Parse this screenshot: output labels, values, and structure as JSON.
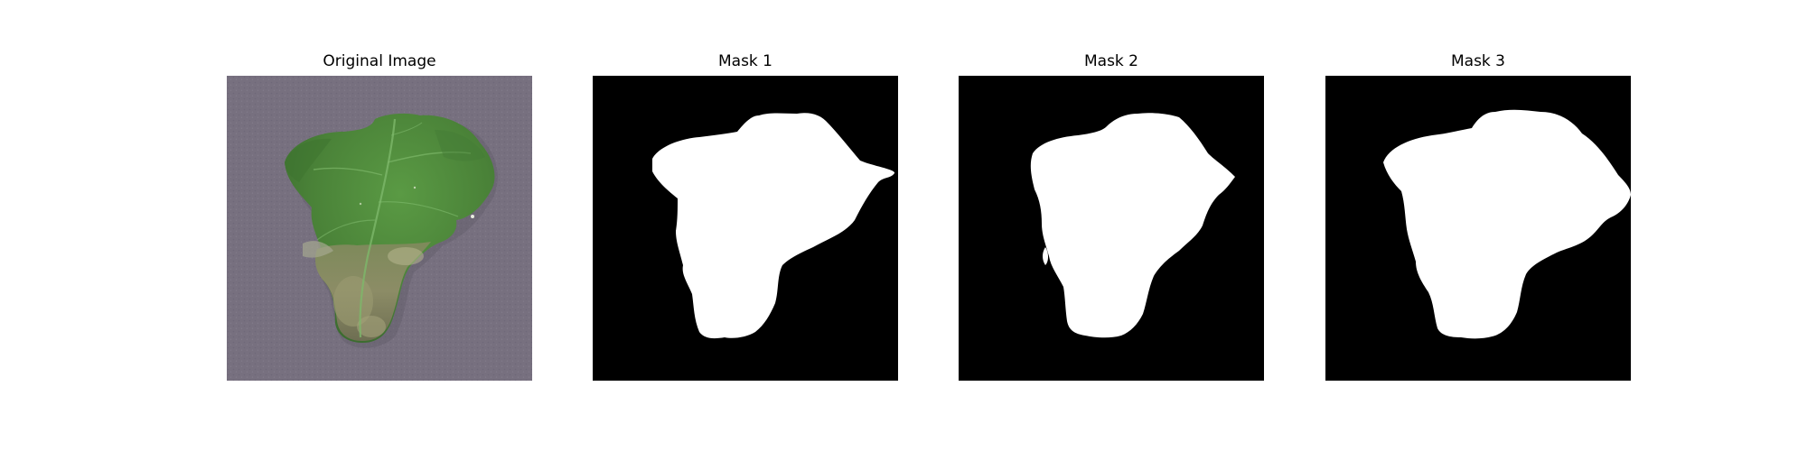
{
  "figure": {
    "panels": [
      {
        "title": "Original Image",
        "kind": "photo",
        "content": "leaf"
      },
      {
        "title": "Mask 1",
        "kind": "mask",
        "foreground": "#ffffff",
        "background": "#000000"
      },
      {
        "title": "Mask 2",
        "kind": "mask",
        "foreground": "#ffffff",
        "background": "#000000"
      },
      {
        "title": "Mask 3",
        "kind": "mask",
        "foreground": "#ffffff",
        "background": "#000000"
      }
    ],
    "colors": {
      "photo_background": "#77707f",
      "leaf_green": "#4e8a3c",
      "leaf_dark": "#3b6e2f",
      "leaf_diseased": "#8a8a5e"
    }
  }
}
